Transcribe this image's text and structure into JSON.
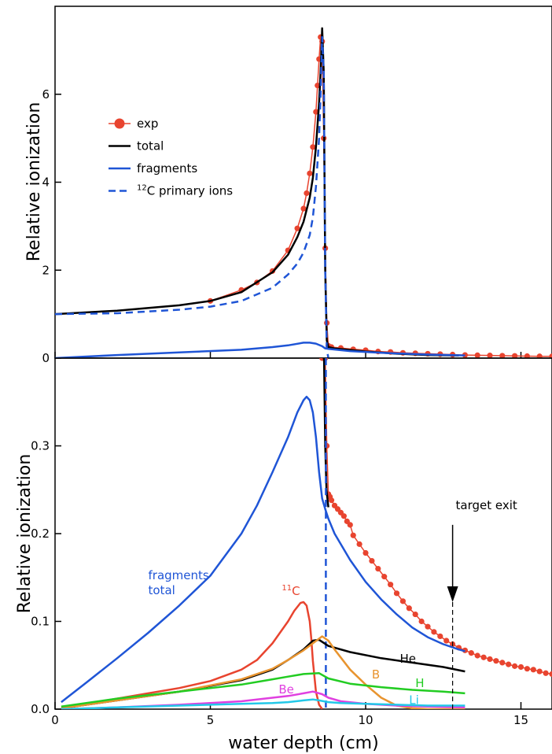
{
  "chart_data": [
    {
      "type": "line",
      "panel": "top",
      "xlabel": "",
      "ylabel": "Relative  ionization",
      "xlim": [
        0,
        16
      ],
      "ylim": [
        0,
        8
      ],
      "yticks": [
        0,
        2,
        4,
        6
      ],
      "grid": false,
      "legend": {
        "placement": "top-left",
        "entries": [
          {
            "label": "exp",
            "sup": "",
            "color": "#e8442f",
            "style": "line-marker"
          },
          {
            "label": "total",
            "sup": "",
            "color": "#000000",
            "style": "solid"
          },
          {
            "label": "fragments",
            "sup": "",
            "color": "#1f55d6",
            "style": "solid"
          },
          {
            "label": "C primary ions",
            "sup": "12",
            "color": "#1f55d6",
            "style": "dashed"
          }
        ]
      },
      "series": [
        {
          "name": "exp",
          "color": "#e8442f",
          "x": [
            5.0,
            6.0,
            6.5,
            7.0,
            7.5,
            7.8,
            8.0,
            8.1,
            8.2,
            8.3,
            8.4,
            8.45,
            8.5,
            8.55,
            8.6,
            8.65,
            8.7,
            8.75,
            8.8,
            8.9,
            9.2,
            9.6,
            10.0,
            10.4,
            10.8,
            11.2,
            11.6,
            12.0,
            12.4,
            12.8,
            13.2,
            13.6,
            14.0,
            14.4,
            14.8,
            15.2,
            15.6,
            16.0
          ],
          "y": [
            1.3,
            1.55,
            1.72,
            1.98,
            2.45,
            2.95,
            3.4,
            3.75,
            4.2,
            4.8,
            5.6,
            6.2,
            6.8,
            7.3,
            7.2,
            5.0,
            2.5,
            0.8,
            0.28,
            0.25,
            0.23,
            0.2,
            0.18,
            0.15,
            0.14,
            0.12,
            0.11,
            0.1,
            0.09,
            0.08,
            0.07,
            0.065,
            0.06,
            0.055,
            0.05,
            0.045,
            0.04,
            0.04
          ]
        },
        {
          "name": "total",
          "color": "#000000",
          "x": [
            0.0,
            2.0,
            4.0,
            5.0,
            6.0,
            7.0,
            7.5,
            7.8,
            8.0,
            8.2,
            8.3,
            8.4,
            8.5,
            8.55,
            8.6,
            8.65,
            8.7,
            8.75,
            8.8,
            9.0,
            10.0,
            11.0,
            12.0,
            13.0
          ],
          "y": [
            1.0,
            1.08,
            1.2,
            1.3,
            1.5,
            1.95,
            2.35,
            2.75,
            3.1,
            3.65,
            4.1,
            4.8,
            5.8,
            6.5,
            7.5,
            6.5,
            2.0,
            0.4,
            0.25,
            0.22,
            0.15,
            0.1,
            0.07,
            0.06
          ]
        },
        {
          "name": "fragments",
          "color": "#1f55d6",
          "x": [
            0.0,
            2.0,
            4.0,
            6.0,
            7.0,
            7.5,
            8.0,
            8.2,
            8.4,
            8.6,
            8.7,
            8.8,
            9.5,
            10.5,
            12.0,
            13.2
          ],
          "y": [
            0.0,
            0.07,
            0.13,
            0.19,
            0.25,
            0.29,
            0.35,
            0.35,
            0.33,
            0.27,
            0.22,
            0.21,
            0.16,
            0.12,
            0.08,
            0.06
          ]
        },
        {
          "name": "C primary ions",
          "color": "#1f55d6",
          "dash": true,
          "x": [
            0.0,
            2.0,
            4.0,
            5.0,
            6.0,
            7.0,
            7.5,
            7.8,
            8.0,
            8.2,
            8.3,
            8.4,
            8.5,
            8.55,
            8.6,
            8.65,
            8.7,
            8.75,
            8.8
          ],
          "y": [
            1.0,
            1.02,
            1.1,
            1.17,
            1.3,
            1.6,
            1.9,
            2.15,
            2.4,
            2.8,
            3.2,
            3.9,
            5.0,
            6.0,
            7.3,
            6.5,
            2.0,
            0.2,
            0.0
          ]
        }
      ]
    },
    {
      "type": "line",
      "panel": "bottom",
      "xlabel": "water  depth  (cm)",
      "ylabel": "Relative  ionization",
      "xlim": [
        0,
        16
      ],
      "ylim": [
        0,
        0.4
      ],
      "xticks": [
        0,
        5,
        10,
        15
      ],
      "yticks": [
        0.0,
        0.1,
        0.2,
        0.3
      ],
      "grid": false,
      "annotations": [
        {
          "text": "fragments",
          "color": "#1f55d6",
          "x": 3.0,
          "y": 0.148
        },
        {
          "text": "total",
          "color": "#1f55d6",
          "x": 3.0,
          "y": 0.131
        },
        {
          "text": "C",
          "sup": "11",
          "color": "#e8442f",
          "x": 7.3,
          "y": 0.13
        },
        {
          "text": "He",
          "color": "#000000",
          "x": 11.1,
          "y": 0.053
        },
        {
          "text": "B",
          "color": "#e8942f",
          "x": 10.2,
          "y": 0.035
        },
        {
          "text": "H",
          "color": "#22cc22",
          "x": 11.6,
          "y": 0.025
        },
        {
          "text": "Be",
          "color": "#e040e0",
          "x": 7.2,
          "y": 0.018
        },
        {
          "text": "Li",
          "color": "#22c8e8",
          "x": 11.4,
          "y": 0.006
        },
        {
          "text": "target exit",
          "color": "#000000",
          "x": 12.9,
          "y": 0.228
        }
      ],
      "target_exit": {
        "x": 12.8,
        "arrow_from": 0.21,
        "arrow_to": 0.122
      },
      "series": [
        {
          "name": "exp",
          "color": "#e8442f",
          "x": [
            8.6,
            8.7,
            8.75,
            8.8,
            8.85,
            8.9,
            9.0,
            9.1,
            9.2,
            9.3,
            9.4,
            9.5,
            9.6,
            9.8,
            10.0,
            10.2,
            10.4,
            10.6,
            10.8,
            11.0,
            11.2,
            11.4,
            11.6,
            11.8,
            12.0,
            12.2,
            12.4,
            12.6,
            12.8,
            13.0,
            13.2,
            13.4,
            13.6,
            13.8,
            14.0,
            14.2,
            14.4,
            14.6,
            14.8,
            15.0,
            15.2,
            15.4,
            15.6,
            15.8,
            16.0
          ],
          "y": [
            0.4,
            0.4,
            0.3,
            0.245,
            0.242,
            0.238,
            0.232,
            0.228,
            0.224,
            0.22,
            0.214,
            0.21,
            0.198,
            0.188,
            0.178,
            0.169,
            0.16,
            0.151,
            0.142,
            0.132,
            0.123,
            0.115,
            0.108,
            0.1,
            0.094,
            0.088,
            0.083,
            0.078,
            0.074,
            0.07,
            0.067,
            0.064,
            0.061,
            0.059,
            0.057,
            0.055,
            0.053,
            0.051,
            0.049,
            0.048,
            0.046,
            0.045,
            0.043,
            0.041,
            0.04
          ]
        },
        {
          "name": "total",
          "color": "#000000",
          "x": [
            8.62,
            8.66,
            8.7,
            8.74,
            8.8
          ],
          "y": [
            0.4,
            0.4,
            0.3,
            0.25,
            0.23
          ]
        },
        {
          "name": "fragments",
          "color": "#1f55d6",
          "x": [
            0.2,
            1.0,
            2.0,
            3.0,
            4.0,
            5.0,
            6.0,
            6.5,
            7.0,
            7.5,
            7.8,
            8.0,
            8.1,
            8.2,
            8.3,
            8.4,
            8.5,
            8.6,
            8.7,
            8.8,
            9.0,
            9.5,
            10.0,
            10.5,
            11.0,
            11.5,
            12.0,
            12.5,
            13.0,
            13.2
          ],
          "y": [
            0.008,
            0.03,
            0.058,
            0.087,
            0.118,
            0.152,
            0.2,
            0.232,
            0.27,
            0.31,
            0.338,
            0.352,
            0.356,
            0.352,
            0.338,
            0.31,
            0.27,
            0.24,
            0.228,
            0.217,
            0.2,
            0.17,
            0.145,
            0.125,
            0.108,
            0.093,
            0.082,
            0.074,
            0.068,
            0.066
          ]
        },
        {
          "name": "C primary ions",
          "color": "#1f55d6",
          "dash": true,
          "x": [
            8.72,
            8.72
          ],
          "y": [
            0.4,
            0.0
          ]
        },
        {
          "name": "C",
          "color": "#e8442f",
          "x": [
            0.2,
            1.0,
            2.0,
            3.0,
            4.0,
            5.0,
            6.0,
            6.5,
            7.0,
            7.5,
            7.7,
            7.9,
            8.0,
            8.1,
            8.2,
            8.25,
            8.3,
            8.4,
            8.5,
            8.6
          ],
          "y": [
            0.0,
            0.006,
            0.012,
            0.018,
            0.024,
            0.032,
            0.045,
            0.056,
            0.075,
            0.1,
            0.112,
            0.121,
            0.122,
            0.118,
            0.1,
            0.08,
            0.055,
            0.02,
            0.005,
            0.0
          ]
        },
        {
          "name": "He",
          "color": "#000000",
          "x": [
            0.2,
            2.0,
            4.0,
            6.0,
            7.0,
            7.5,
            8.0,
            8.3,
            8.5,
            8.8,
            9.5,
            10.5,
            11.5,
            12.5,
            13.2
          ],
          "y": [
            0.001,
            0.01,
            0.02,
            0.033,
            0.045,
            0.056,
            0.068,
            0.078,
            0.079,
            0.072,
            0.065,
            0.058,
            0.053,
            0.048,
            0.043
          ]
        },
        {
          "name": "B",
          "color": "#e8942f",
          "x": [
            0.2,
            2.0,
            4.0,
            6.0,
            7.0,
            7.5,
            8.0,
            8.3,
            8.6,
            8.8,
            9.0,
            9.5,
            10.0,
            10.5,
            11.0,
            11.5,
            12.0,
            13.2
          ],
          "y": [
            0.001,
            0.01,
            0.02,
            0.034,
            0.046,
            0.056,
            0.067,
            0.075,
            0.083,
            0.078,
            0.068,
            0.045,
            0.028,
            0.013,
            0.004,
            0.001,
            0.0,
            0.0
          ]
        },
        {
          "name": "H",
          "color": "#22cc22",
          "x": [
            0.2,
            2.0,
            4.0,
            6.0,
            7.0,
            7.5,
            8.0,
            8.5,
            8.8,
            9.5,
            10.5,
            11.5,
            12.5,
            13.2
          ],
          "y": [
            0.003,
            0.012,
            0.02,
            0.028,
            0.034,
            0.037,
            0.04,
            0.041,
            0.035,
            0.029,
            0.025,
            0.022,
            0.02,
            0.018
          ]
        },
        {
          "name": "Be",
          "color": "#e040e0",
          "x": [
            0.2,
            2.0,
            4.0,
            6.0,
            7.0,
            7.5,
            8.0,
            8.3,
            8.6,
            8.8,
            9.2,
            10.0,
            11.0,
            12.0,
            13.2
          ],
          "y": [
            0.0,
            0.002,
            0.005,
            0.009,
            0.013,
            0.015,
            0.018,
            0.02,
            0.017,
            0.013,
            0.009,
            0.006,
            0.004,
            0.003,
            0.002
          ]
        },
        {
          "name": "Li",
          "color": "#22c8e8",
          "x": [
            0.2,
            2.0,
            4.0,
            6.0,
            7.0,
            7.5,
            8.0,
            8.3,
            8.5,
            8.8,
            9.2,
            10.0,
            11.0,
            12.0,
            13.2
          ],
          "y": [
            0.0,
            0.002,
            0.004,
            0.006,
            0.007,
            0.008,
            0.01,
            0.011,
            0.01,
            0.008,
            0.007,
            0.006,
            0.005,
            0.004,
            0.004
          ]
        }
      ]
    }
  ]
}
